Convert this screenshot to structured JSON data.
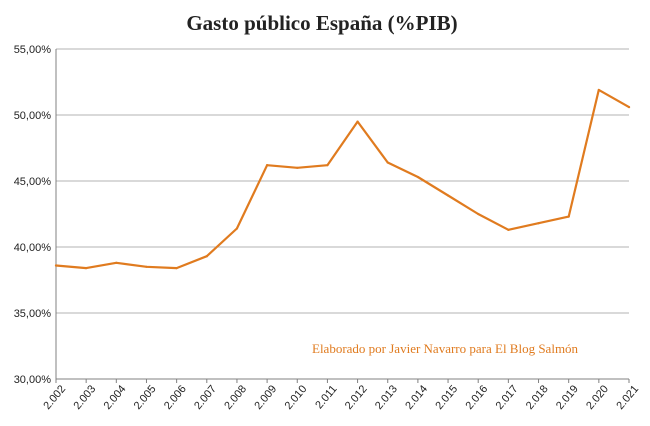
{
  "chart_data": {
    "type": "line",
    "title": "Gasto público España (%PIB)",
    "xlabel": "",
    "ylabel": "",
    "categories": [
      "2.002",
      "2.003",
      "2.004",
      "2.005",
      "2.006",
      "2.007",
      "2.008",
      "2.009",
      "2.010",
      "2.011",
      "2.012",
      "2.013",
      "2.014",
      "2.015",
      "2.016",
      "2.017",
      "2.018",
      "2.019",
      "2.020",
      "2.021"
    ],
    "series": [
      {
        "values": [
          38.6,
          38.4,
          38.8,
          38.5,
          38.4,
          39.3,
          41.4,
          46.2,
          46.0,
          46.2,
          49.5,
          46.4,
          45.3,
          43.9,
          42.5,
          41.3,
          41.8,
          42.3,
          51.9,
          50.6
        ]
      }
    ],
    "y_ticks": [
      "30,00%",
      "35,00%",
      "40,00%",
      "45,00%",
      "50,00%",
      "55,00%"
    ],
    "ylim": [
      30,
      55
    ],
    "grid": true,
    "legend": "none",
    "annotation": "Elaborado por Javier Navarro para El Blog Salmón",
    "colors": {
      "line": "#E07B1F",
      "annotation": "#E07B1F",
      "grid": "#B3B3B3",
      "axis": "#808080"
    }
  }
}
